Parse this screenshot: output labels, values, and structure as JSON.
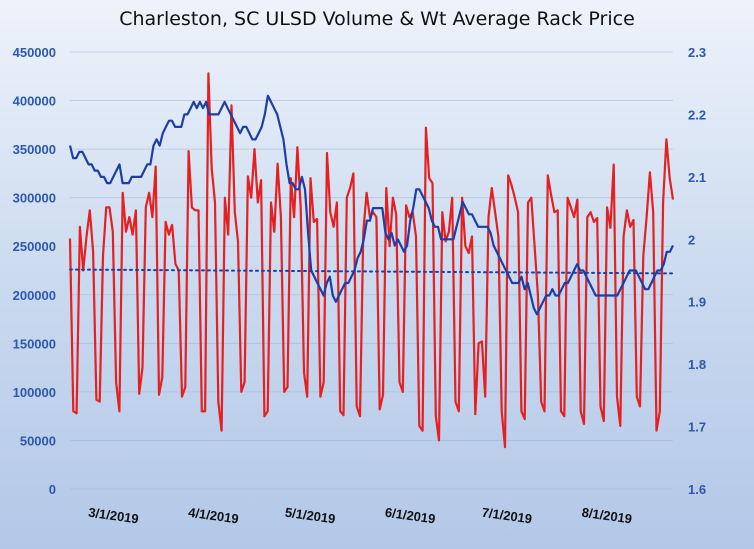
{
  "chart_data": {
    "type": "line",
    "title": "Charleston, SC ULSD Volume & Wt Average Rack Price",
    "x_start": "2019-02-25",
    "x_end": "2019-08-31",
    "x_tick_labels": [
      "3/1/2019",
      "4/1/2019",
      "5/1/2019",
      "6/1/2019",
      "7/1/2019",
      "8/1/2019"
    ],
    "x_tick_dates": [
      "2019-03-01",
      "2019-04-01",
      "2019-05-01",
      "2019-06-01",
      "2019-07-01",
      "2019-08-01"
    ],
    "y_left": {
      "lim": [
        0,
        450000
      ],
      "ticks": [
        0,
        50000,
        100000,
        150000,
        200000,
        250000,
        300000,
        350000,
        400000,
        450000
      ]
    },
    "y_right": {
      "lim": [
        1.6,
        2.3
      ],
      "ticks": [
        "1.6",
        "1.7",
        "1.8",
        "1.9",
        "2",
        "2.1",
        "2.2",
        "2.3"
      ]
    },
    "grid": true,
    "series": [
      {
        "name": "",
        "axis": "left",
        "color": "#e52020",
        "style": "solid",
        "values": [
          258000,
          80000,
          78000,
          270000,
          225000,
          260000,
          287000,
          245000,
          92000,
          90000,
          240000,
          290000,
          290000,
          265000,
          110000,
          80000,
          305000,
          265000,
          280000,
          262000,
          287000,
          98000,
          125000,
          290000,
          305000,
          280000,
          332000,
          97000,
          115000,
          275000,
          262000,
          272000,
          232000,
          225000,
          95000,
          105000,
          348000,
          290000,
          287000,
          287000,
          80000,
          80000,
          428000,
          330000,
          295000,
          90000,
          60000,
          300000,
          262000,
          395000,
          285000,
          255000,
          100000,
          110000,
          322000,
          300000,
          350000,
          295000,
          318000,
          75000,
          80000,
          295000,
          265000,
          335000,
          280000,
          100000,
          105000,
          320000,
          280000,
          352000,
          290000,
          120000,
          95000,
          320000,
          275000,
          278000,
          95000,
          110000,
          346000,
          285000,
          270000,
          295000,
          80000,
          76000,
          300000,
          310000,
          325000,
          85000,
          75000,
          265000,
          305000,
          280000,
          285000,
          280000,
          82000,
          97000,
          310000,
          250000,
          300000,
          283000,
          110000,
          100000,
          292000,
          280000,
          285000,
          260000,
          65000,
          60000,
          372000,
          320000,
          315000,
          75000,
          50000,
          285000,
          255000,
          265000,
          300000,
          90000,
          80000,
          300000,
          250000,
          243000,
          260000,
          77000,
          150000,
          152000,
          95000,
          280000,
          310000,
          285000,
          260000,
          80000,
          43000,
          323000,
          313000,
          300000,
          285000,
          80000,
          72000,
          295000,
          300000,
          250000,
          200000,
          90000,
          80000,
          323000,
          303000,
          285000,
          287000,
          80000,
          75000,
          300000,
          290000,
          280000,
          298000,
          80000,
          67000,
          280000,
          285000,
          275000,
          279000,
          85000,
          70000,
          290000,
          269000,
          334000,
          95000,
          65000,
          260000,
          287000,
          270000,
          277000,
          95000,
          85000,
          240000,
          280000,
          326000,
          285000,
          60000,
          80000,
          295000,
          360000,
          320000,
          298000
        ]
      },
      {
        "name": "",
        "axis": "right",
        "color": "#1e3ea6",
        "style": "solid",
        "values": [
          2.15,
          2.13,
          2.13,
          2.14,
          2.14,
          2.13,
          2.12,
          2.12,
          2.11,
          2.11,
          2.1,
          2.1,
          2.09,
          2.09,
          2.1,
          2.11,
          2.12,
          2.09,
          2.09,
          2.09,
          2.1,
          2.1,
          2.1,
          2.1,
          2.11,
          2.12,
          2.12,
          2.15,
          2.16,
          2.15,
          2.17,
          2.18,
          2.19,
          2.19,
          2.18,
          2.18,
          2.18,
          2.2,
          2.2,
          2.21,
          2.22,
          2.21,
          2.22,
          2.21,
          2.22,
          2.2,
          2.2,
          2.2,
          2.2,
          2.21,
          2.22,
          2.21,
          2.2,
          2.19,
          2.18,
          2.17,
          2.18,
          2.18,
          2.17,
          2.16,
          2.16,
          2.17,
          2.18,
          2.2,
          2.23,
          2.22,
          2.21,
          2.2,
          2.18,
          2.16,
          2.12,
          2.09,
          2.09,
          2.08,
          2.08,
          2.1,
          2.08,
          2.01,
          1.95,
          1.94,
          1.93,
          1.92,
          1.91,
          1.93,
          1.94,
          1.91,
          1.9,
          1.91,
          1.92,
          1.93,
          1.93,
          1.94,
          1.95,
          1.97,
          1.98,
          2.0,
          2.03,
          2.03,
          2.05,
          2.05,
          2.05,
          2.05,
          2.01,
          2.0,
          2.01,
          1.99,
          2.0,
          1.99,
          1.98,
          1.99,
          2.03,
          2.05,
          2.08,
          2.08,
          2.07,
          2.06,
          2.05,
          2.03,
          2.02,
          2.02,
          2.0,
          2.0,
          2.0,
          2.0,
          2.0,
          2.02,
          2.04,
          2.06,
          2.05,
          2.04,
          2.04,
          2.03,
          2.02,
          2.02,
          2.02,
          2.02,
          2.01,
          1.99,
          1.98,
          1.97,
          1.96,
          1.95,
          1.94,
          1.93,
          1.93,
          1.93,
          1.94,
          1.92,
          1.93,
          1.91,
          1.89,
          1.88,
          1.89,
          1.9,
          1.91,
          1.91,
          1.92,
          1.91,
          1.91,
          1.92,
          1.93,
          1.93,
          1.94,
          1.95,
          1.96,
          1.95,
          1.95,
          1.94,
          1.93,
          1.92,
          1.91,
          1.91,
          1.91,
          1.91,
          1.91,
          1.91,
          1.91,
          1.91,
          1.92,
          1.93,
          1.94,
          1.95,
          1.95,
          1.95,
          1.94,
          1.93,
          1.92,
          1.92,
          1.93,
          1.94,
          1.95,
          1.95,
          1.96,
          1.98,
          1.98,
          1.99
        ]
      },
      {
        "name": "",
        "axis": "left",
        "color": "#1e3ea6",
        "style": "dotted",
        "values_endpoints": [
          226000,
          222000
        ]
      }
    ]
  }
}
